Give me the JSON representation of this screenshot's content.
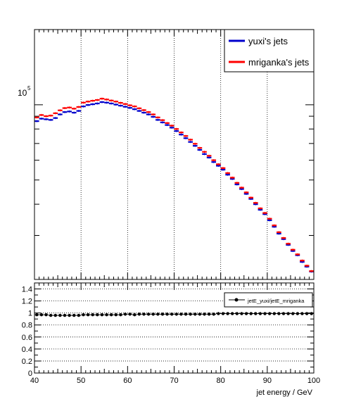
{
  "chart_data": [
    {
      "type": "line",
      "xlim": [
        40,
        100
      ],
      "ylim": [
        20000,
        200000
      ],
      "ylog": true,
      "yticks": [
        {
          "value": 100000,
          "base": "10",
          "exp": "5"
        }
      ],
      "grid_x": [
        50,
        60,
        70,
        80,
        90
      ],
      "legend": {
        "position": "top-right",
        "entries": [
          {
            "name": "yuxi's jets",
            "color": "#0000cc"
          },
          {
            "name": "mriganka's jets",
            "color": "#ff0000"
          }
        ]
      },
      "series": [
        {
          "name": "yuxi's jets",
          "color": "#0000cc",
          "x": [
            40.5,
            41.5,
            42.5,
            43.5,
            44.5,
            45.5,
            46.5,
            47.5,
            48.5,
            49.5,
            50.5,
            51.5,
            52.5,
            53.5,
            54.5,
            55.5,
            56.5,
            57.5,
            58.5,
            59.5,
            60.5,
            61.5,
            62.5,
            63.5,
            64.5,
            65.5,
            66.5,
            67.5,
            68.5,
            69.5,
            70.5,
            71.5,
            72.5,
            73.5,
            74.5,
            75.5,
            76.5,
            77.5,
            78.5,
            79.5,
            80.5,
            81.5,
            82.5,
            83.5,
            84.5,
            85.5,
            86.5,
            87.5,
            88.5,
            89.5,
            90.5,
            91.5,
            92.5,
            93.5,
            94.5,
            95.5,
            96.5,
            97.5,
            98.5,
            99.5
          ],
          "y": [
            86000,
            88000,
            87500,
            87000,
            88500,
            91500,
            93500,
            94000,
            93000,
            94500,
            98500,
            99800,
            100500,
            101200,
            102500,
            102000,
            101200,
            100200,
            99200,
            98200,
            97200,
            96000,
            94500,
            93000,
            91500,
            89500,
            87000,
            85000,
            83000,
            81000,
            78500,
            76000,
            73500,
            71000,
            68500,
            66000,
            63500,
            61500,
            59000,
            57000,
            55000,
            52500,
            50500,
            48000,
            46000,
            44000,
            42000,
            40000,
            38000,
            36500,
            34500,
            32500,
            30500,
            29000,
            27500,
            26000,
            25000,
            23500,
            22500,
            21500
          ]
        },
        {
          "name": "mriganka's jets",
          "color": "#ff0000",
          "x": [
            40.5,
            41.5,
            42.5,
            43.5,
            44.5,
            45.5,
            46.5,
            47.5,
            48.5,
            49.5,
            50.5,
            51.5,
            52.5,
            53.5,
            54.5,
            55.5,
            56.5,
            57.5,
            58.5,
            59.5,
            60.5,
            61.5,
            62.5,
            63.5,
            64.5,
            65.5,
            66.5,
            67.5,
            68.5,
            69.5,
            70.5,
            71.5,
            72.5,
            73.5,
            74.5,
            75.5,
            76.5,
            77.5,
            78.5,
            79.5,
            80.5,
            81.5,
            82.5,
            83.5,
            84.5,
            85.5,
            86.5,
            87.5,
            88.5,
            89.5,
            90.5,
            91.5,
            92.5,
            93.5,
            94.5,
            95.5,
            96.5,
            97.5,
            98.5,
            99.5
          ],
          "y": [
            89000,
            91000,
            90000,
            90500,
            92500,
            95000,
            97000,
            97500,
            96500,
            98000,
            102000,
            103000,
            103800,
            104500,
            105800,
            105000,
            104000,
            103000,
            101800,
            100700,
            99500,
            98500,
            96800,
            95200,
            93500,
            91500,
            89000,
            86800,
            84500,
            82500,
            80000,
            77500,
            75000,
            72500,
            69800,
            67200,
            64800,
            62500,
            60000,
            57800,
            55800,
            53300,
            51100,
            48700,
            46600,
            44600,
            42500,
            40500,
            38500,
            36900,
            35000,
            32900,
            30900,
            29300,
            27800,
            26300,
            25200,
            23800,
            22700,
            21600
          ]
        }
      ]
    },
    {
      "type": "scatter",
      "xlabel": "jet energy / GeV",
      "xlim": [
        40,
        100
      ],
      "ylim": [
        0,
        1.5
      ],
      "xticks": [
        "40",
        "50",
        "60",
        "70",
        "80",
        "90",
        "100"
      ],
      "yticks": [
        "0",
        "0.2",
        "0.4",
        "0.6",
        "0.8",
        "1",
        "1.2",
        "1.4"
      ],
      "grid_y": [
        0.2,
        0.4,
        0.6,
        0.8,
        1.0,
        1.2,
        1.4
      ],
      "legend": {
        "position": "top-right",
        "entries": [
          {
            "name": "jetE_yuxi/jetE_mriganka",
            "color": "#000000"
          }
        ]
      },
      "series": [
        {
          "name": "jetE_yuxi/jetE_mriganka",
          "color": "#000000",
          "x": [
            40.5,
            41.5,
            42.5,
            43.5,
            44.5,
            45.5,
            46.5,
            47.5,
            48.5,
            49.5,
            50.5,
            51.5,
            52.5,
            53.5,
            54.5,
            55.5,
            56.5,
            57.5,
            58.5,
            59.5,
            60.5,
            61.5,
            62.5,
            63.5,
            64.5,
            65.5,
            66.5,
            67.5,
            68.5,
            69.5,
            70.5,
            71.5,
            72.5,
            73.5,
            74.5,
            75.5,
            76.5,
            77.5,
            78.5,
            79.5,
            80.5,
            81.5,
            82.5,
            83.5,
            84.5,
            85.5,
            86.5,
            87.5,
            88.5,
            89.5,
            90.5,
            91.5,
            92.5,
            93.5,
            94.5,
            95.5,
            96.5,
            97.5,
            98.5,
            99.5
          ],
          "y": [
            0.97,
            0.97,
            0.97,
            0.96,
            0.96,
            0.96,
            0.96,
            0.96,
            0.96,
            0.96,
            0.97,
            0.97,
            0.97,
            0.97,
            0.97,
            0.97,
            0.97,
            0.97,
            0.97,
            0.98,
            0.98,
            0.97,
            0.98,
            0.98,
            0.98,
            0.98,
            0.98,
            0.98,
            0.98,
            0.98,
            0.98,
            0.98,
            0.98,
            0.98,
            0.98,
            0.98,
            0.98,
            0.98,
            0.98,
            0.99,
            0.99,
            0.99,
            0.99,
            0.99,
            0.99,
            0.99,
            0.99,
            0.99,
            0.99,
            0.99,
            0.99,
            0.99,
            0.99,
            0.99,
            0.99,
            0.99,
            0.99,
            0.99,
            0.99,
            0.99
          ]
        }
      ]
    }
  ]
}
